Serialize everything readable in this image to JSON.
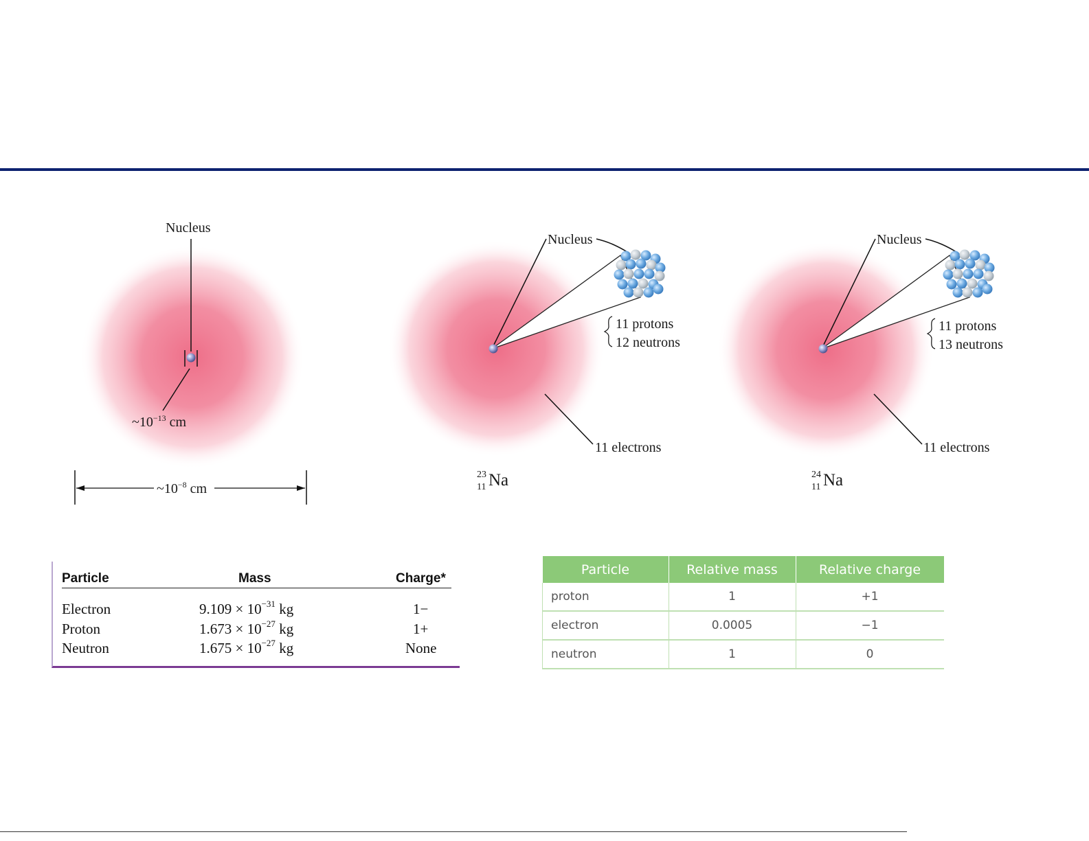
{
  "diagram_left": {
    "nucleus_label": "Nucleus",
    "nucleus_size_prefix": "~10",
    "nucleus_size_exp": "−13",
    "nucleus_size_unit": " cm",
    "atom_size_prefix": "~10",
    "atom_size_exp": "−8",
    "atom_size_unit": " cm"
  },
  "diagram_na23": {
    "nucleus_label": "Nucleus",
    "protons": "11 protons",
    "neutrons": "12 neutrons",
    "electrons": "11 electrons",
    "mass_number": "23",
    "atomic_number": "11",
    "symbol": "Na"
  },
  "diagram_na24": {
    "nucleus_label": "Nucleus",
    "protons": "11 protons",
    "neutrons": "13 neutrons",
    "electrons": "11 electrons",
    "mass_number": "24",
    "atomic_number": "11",
    "symbol": "Na"
  },
  "particle_table": {
    "headers": [
      "Particle",
      "Mass",
      "Charge*"
    ],
    "rows": [
      {
        "particle": "Electron",
        "mass_coef": "9.109 × 10",
        "mass_exp": "−31",
        "mass_unit": " kg",
        "charge": "1−"
      },
      {
        "particle": "Proton",
        "mass_coef": "1.673 × 10",
        "mass_exp": "−27",
        "mass_unit": " kg",
        "charge": "1+"
      },
      {
        "particle": "Neutron",
        "mass_coef": "1.675 × 10",
        "mass_exp": "−27",
        "mass_unit": " kg",
        "charge": "None"
      }
    ]
  },
  "relative_table": {
    "headers": [
      "Particle",
      "Relative mass",
      "Relative charge"
    ],
    "rows": [
      [
        "proton",
        "1",
        "+1"
      ],
      [
        "electron",
        "0.0005",
        "−1"
      ],
      [
        "neutron",
        "1",
        "0"
      ]
    ]
  },
  "colors": {
    "title_rule": "#0d2270",
    "electron_cloud": "#ee6e88",
    "table_header_green": "#8cc978",
    "table_border_purple": "#7b3a93"
  }
}
